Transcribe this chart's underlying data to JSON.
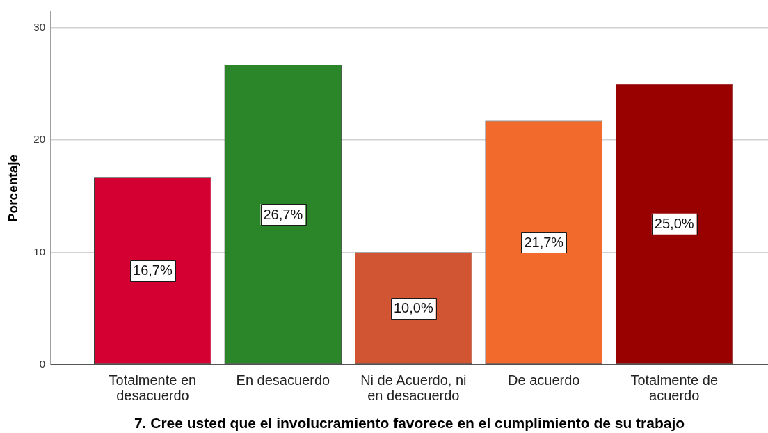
{
  "chart_data": {
    "type": "bar",
    "xlabel": "7. Cree usted que el involucramiento favorece en el cumplimiento de su trabajo",
    "ylabel": "Porcentaje",
    "categories": [
      "Totalmente en desacuerdo",
      "En desacuerdo",
      "Ni de Acuerdo, ni en desacuerdo",
      "De acuerdo",
      "Totalmente de acuerdo"
    ],
    "values": [
      16.7,
      26.7,
      10.0,
      21.7,
      25.0
    ],
    "colors": [
      "#d50032",
      "#2a8629",
      "#d15433",
      "#f26a2c",
      "#990000"
    ],
    "value_labels": [
      "16,7%",
      "26,7%",
      "10,0%",
      "21,7%",
      "25,0%"
    ],
    "ylim": [
      0,
      31.4
    ],
    "yticks": [
      0,
      10,
      20,
      30
    ],
    "grid": "y"
  }
}
